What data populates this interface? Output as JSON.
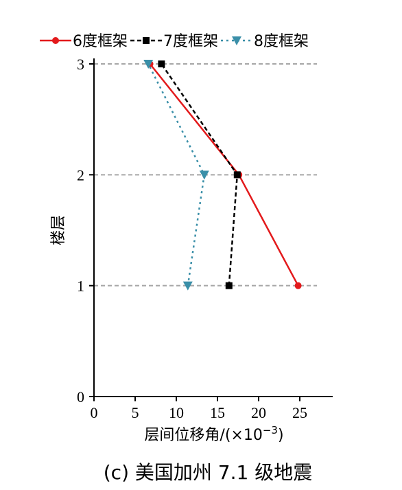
{
  "chart_data": {
    "type": "line",
    "orientation": "x-value-y-floor",
    "xlabel_prefix": "层间位移角/(×10",
    "xlabel_sup": "−3",
    "xlabel_suffix": ")",
    "ylabel": "楼层",
    "caption": "(c) 美国加州 7.1 级地震",
    "xlim": [
      0,
      29
    ],
    "ylim": [
      0,
      3
    ],
    "xticks": [
      0,
      5,
      10,
      15,
      20,
      25
    ],
    "yticks": [
      0,
      1,
      2,
      3
    ],
    "grid": "horizontal-dashed",
    "legend_position": "top",
    "series": [
      {
        "name": "6度框架",
        "color": "#e31a1c",
        "dash": "solid",
        "marker": "circle",
        "points": [
          {
            "x": 24.8,
            "y": 1
          },
          {
            "x": 17.6,
            "y": 2
          },
          {
            "x": 6.8,
            "y": 3
          }
        ]
      },
      {
        "name": "7度框架",
        "color": "#000000",
        "dash": "dashed",
        "marker": "square",
        "points": [
          {
            "x": 16.4,
            "y": 1
          },
          {
            "x": 17.4,
            "y": 2
          },
          {
            "x": 8.2,
            "y": 3
          }
        ]
      },
      {
        "name": "8度框架",
        "color": "#3a8fa8",
        "dash": "dotted",
        "marker": "triangle-down",
        "points": [
          {
            "x": 11.4,
            "y": 1
          },
          {
            "x": 13.4,
            "y": 2
          },
          {
            "x": 6.6,
            "y": 3
          }
        ]
      }
    ]
  }
}
